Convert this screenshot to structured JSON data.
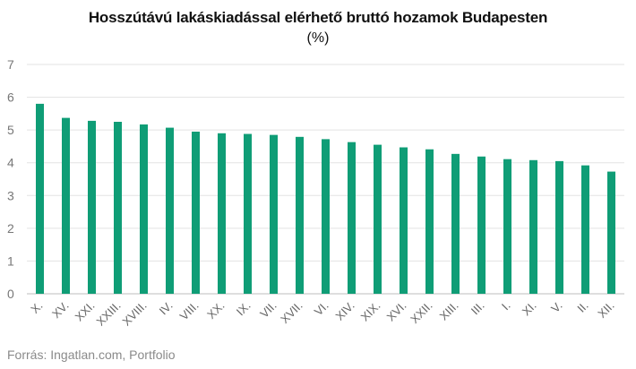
{
  "chart_data": {
    "type": "bar",
    "title": "Hosszútávú lakáskiadással elérhető bruttó hozamok Budapesten",
    "subtitle": "(%)",
    "xlabel": "",
    "ylabel": "",
    "ylim": [
      0,
      7
    ],
    "yticks": [
      "0",
      "1",
      "2",
      "3",
      "4",
      "5",
      "6",
      "7"
    ],
    "grid": true,
    "bar_color": "#0f9d76",
    "categories": [
      "X.",
      "XV.",
      "XXI.",
      "XXIII.",
      "XVIII.",
      "IV.",
      "VIII.",
      "XX.",
      "IX.",
      "VII.",
      "XVII.",
      "VI.",
      "XIV.",
      "XIX.",
      "XVI.",
      "XXII.",
      "XIII.",
      "III.",
      "I.",
      "XI.",
      "V.",
      "II.",
      "XII."
    ],
    "values": [
      5.8,
      5.37,
      5.28,
      5.25,
      5.17,
      5.07,
      4.95,
      4.9,
      4.88,
      4.85,
      4.79,
      4.72,
      4.63,
      4.55,
      4.47,
      4.41,
      4.27,
      4.19,
      4.11,
      4.08,
      4.05,
      3.92,
      3.73
    ]
  },
  "footer": {
    "source": "Forrás: Ingatlan.com, Portfolio"
  }
}
